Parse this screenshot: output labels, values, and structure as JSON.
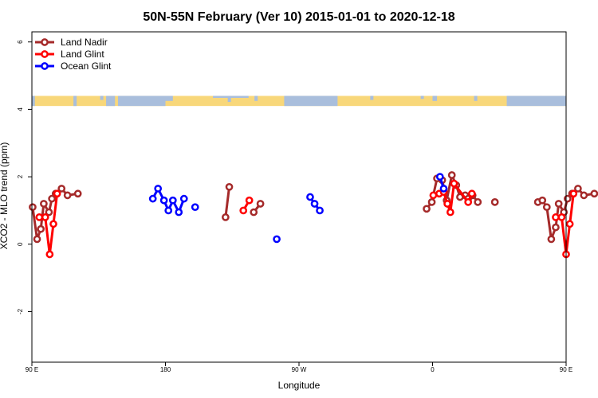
{
  "chart_data": {
    "type": "line",
    "title": "50N-55N February (Ver 10)   2015-01-01 to 2020-12-18",
    "xlabel": "Longitude",
    "ylabel": "XCO2 - MLO trend (ppm)",
    "xlim": [
      90,
      450
    ],
    "ylim": [
      -3.5,
      6.3
    ],
    "x_ticks": [
      {
        "value": 90,
        "label": "90 E"
      },
      {
        "value": 180,
        "label": "180"
      },
      {
        "value": 270,
        "label": "90 W"
      },
      {
        "value": 360,
        "label": "0"
      },
      {
        "value": 450,
        "label": "90 E"
      },
      {
        "value": 540,
        "label": "180"
      }
    ],
    "y_ticks": [
      {
        "value": -2,
        "label": "-2"
      },
      {
        "value": 0,
        "label": "0"
      },
      {
        "value": 2,
        "label": "2"
      },
      {
        "value": 4,
        "label": "4"
      },
      {
        "value": 6,
        "label": "6"
      }
    ],
    "legend_position": "top-left",
    "land_strip": {
      "y_min": 4.1,
      "y_max": 4.4,
      "ocean_color": "#a9bedc",
      "land_color": "#f8d77a"
    },
    "series": [
      {
        "name": "Land Nadir",
        "color": "#a52a2a",
        "segments": [
          [
            [
              90.5,
              1.1
            ],
            [
              93.5,
              0.15
            ],
            [
              96,
              0.45
            ],
            [
              98,
              1.2
            ],
            [
              101.5,
              0.95
            ],
            [
              103.5,
              1.35
            ],
            [
              106,
              1.5
            ],
            [
              110,
              1.65
            ],
            [
              114,
              1.45
            ],
            [
              121,
              1.5
            ]
          ],
          [
            [
              220.5,
              0.8
            ],
            [
              223,
              1.7
            ]
          ],
          [
            [
              239.5,
              0.95
            ],
            [
              244,
              1.2
            ]
          ],
          [
            [
              356,
              1.05
            ],
            [
              359.5,
              1.25
            ],
            [
              363,
              1.95
            ],
            [
              366.5,
              1.9
            ],
            [
              369.5,
              1.3
            ],
            [
              373,
              2.05
            ],
            [
              376,
              1.75
            ],
            [
              378.5,
              1.4
            ],
            [
              382,
              1.45
            ],
            [
              384,
              1.35
            ],
            [
              387,
              1.45
            ],
            [
              390.5,
              1.25
            ]
          ],
          [
            [
              402,
              1.25
            ]
          ],
          [
            [
              431,
              1.25
            ],
            [
              434,
              1.3
            ],
            [
              437,
              1.1
            ],
            [
              440,
              0.15
            ],
            [
              443,
              0.5
            ],
            [
              445,
              1.2
            ],
            [
              448.5,
              0.95
            ],
            [
              451,
              1.35
            ],
            [
              454,
              1.5
            ],
            [
              458,
              1.65
            ],
            [
              462,
              1.45
            ],
            [
              469,
              1.5
            ]
          ]
        ]
      },
      {
        "name": "Land Glint",
        "color": "#ff0000",
        "segments": [
          [
            [
              95,
              0.8
            ],
            [
              99,
              0.8
            ],
            [
              102,
              -0.3
            ],
            [
              104.5,
              0.6
            ],
            [
              107,
              1.5
            ]
          ],
          [
            [
              232.5,
              1.0
            ],
            [
              236.5,
              1.3
            ]
          ],
          [
            [
              360.5,
              1.45
            ],
            [
              364.5,
              1.5
            ],
            [
              367.5,
              1.55
            ],
            [
              370,
              1.2
            ],
            [
              372,
              0.95
            ],
            [
              374.5,
              1.8
            ],
            [
              384,
              1.25
            ],
            [
              386.5,
              1.5
            ]
          ],
          [
            [
              443,
              0.8
            ],
            [
              447,
              0.8
            ],
            [
              450,
              -0.3
            ],
            [
              452.5,
              0.6
            ],
            [
              455,
              1.5
            ]
          ]
        ]
      },
      {
        "name": "Ocean Glint",
        "color": "#0000ff",
        "segments": [
          [
            [
              171.5,
              1.35
            ],
            [
              175,
              1.65
            ],
            [
              179,
              1.3
            ],
            [
              182,
              1.0
            ],
            [
              185,
              1.3
            ],
            [
              189,
              0.95
            ],
            [
              192.5,
              1.35
            ]
          ],
          [
            [
              200,
              1.1
            ]
          ],
          [
            [
              255,
              0.15
            ]
          ],
          [
            [
              277.5,
              1.4
            ],
            [
              280.5,
              1.2
            ],
            [
              284,
              1.0
            ]
          ],
          [
            [
              365,
              2.0
            ],
            [
              367.5,
              1.65
            ]
          ]
        ]
      }
    ]
  }
}
